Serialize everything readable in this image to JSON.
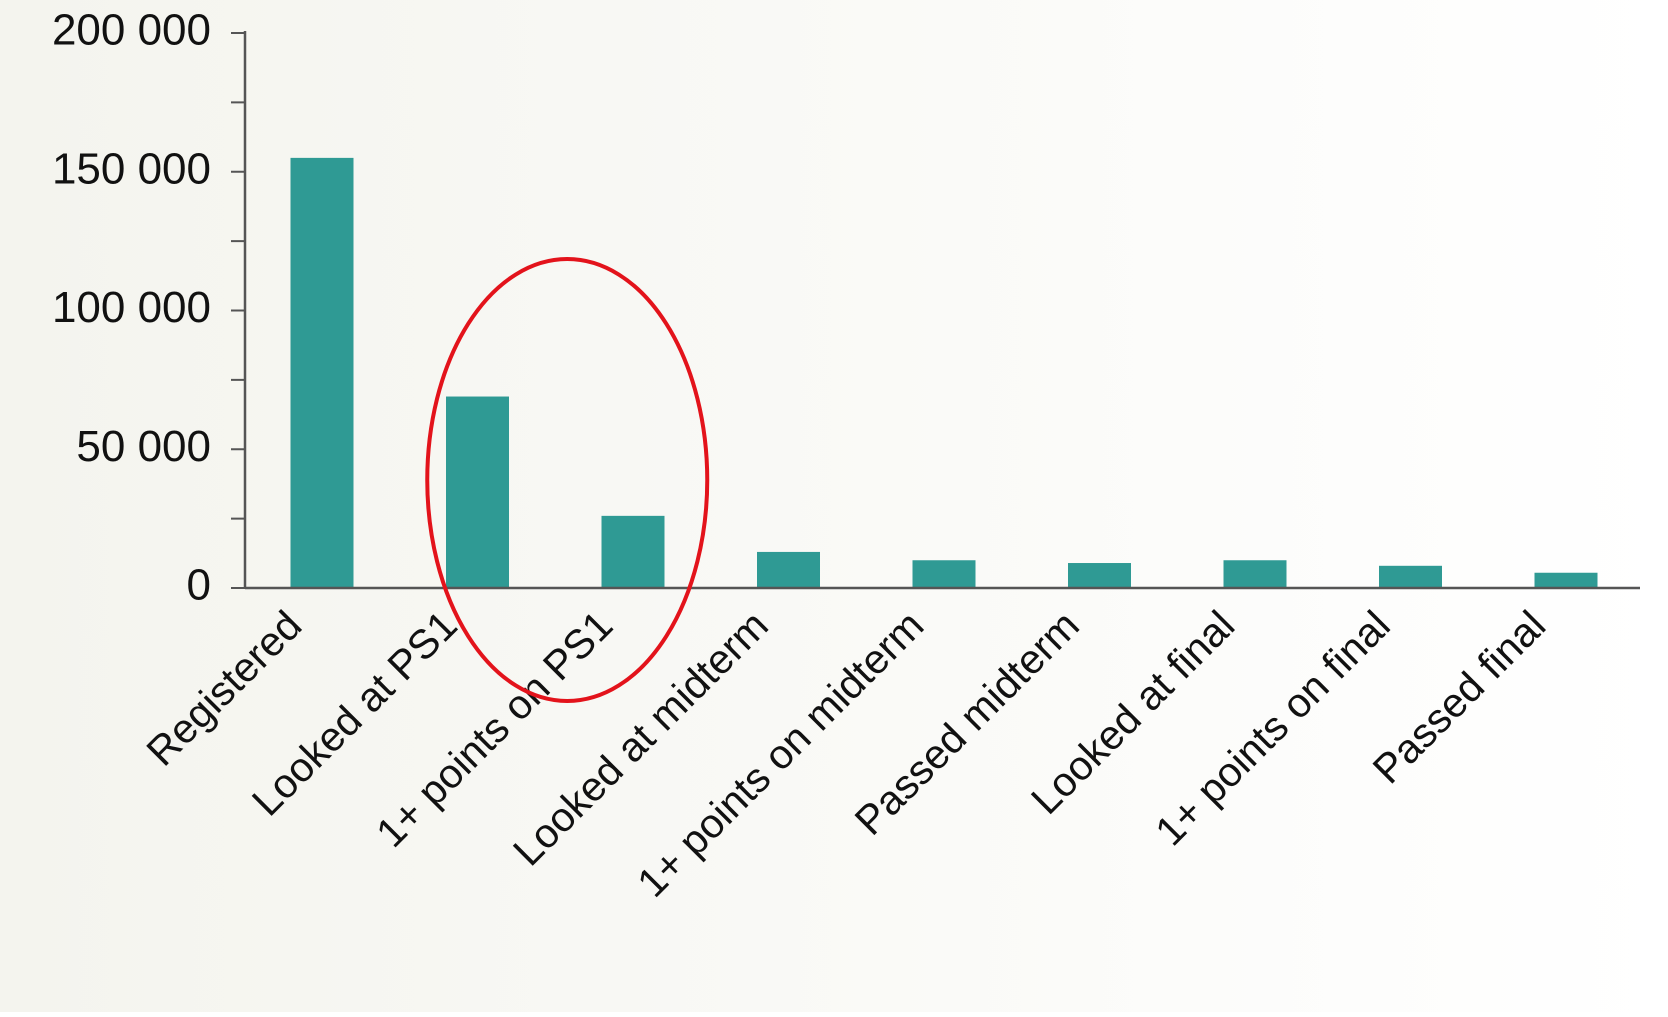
{
  "colors": {
    "bar": "#2f9a94",
    "axis": "#555555",
    "highlight_ellipse": "#e3131b",
    "tick_text": "#111111",
    "background_left": "#f4f4ee",
    "background_right": "#ffffff"
  },
  "chart_data": {
    "type": "bar",
    "title": "",
    "xlabel": "",
    "ylabel": "",
    "categories": [
      "Registered",
      "Looked at PS1",
      "1+ points on PS1",
      "Looked at midterm",
      "1+ points on midterm",
      "Passed midterm",
      "Looked at final",
      "1+ points on final",
      "Passed final"
    ],
    "values": [
      155000,
      69000,
      26000,
      13000,
      10000,
      9000,
      10000,
      8000,
      5500
    ],
    "ylim": [
      0,
      200000
    ],
    "y_ticks": [
      0,
      50000,
      100000,
      150000,
      200000
    ],
    "y_tick_labels": [
      "0",
      "50 000",
      "100 000",
      "150 000",
      "200 000"
    ],
    "y_minor_ticks": [
      25000,
      75000,
      125000,
      175000
    ],
    "grid": false,
    "legend": "none",
    "annotation": {
      "shape": "ellipse",
      "highlights": [
        "Looked at PS1",
        "1+ points on PS1"
      ]
    }
  }
}
